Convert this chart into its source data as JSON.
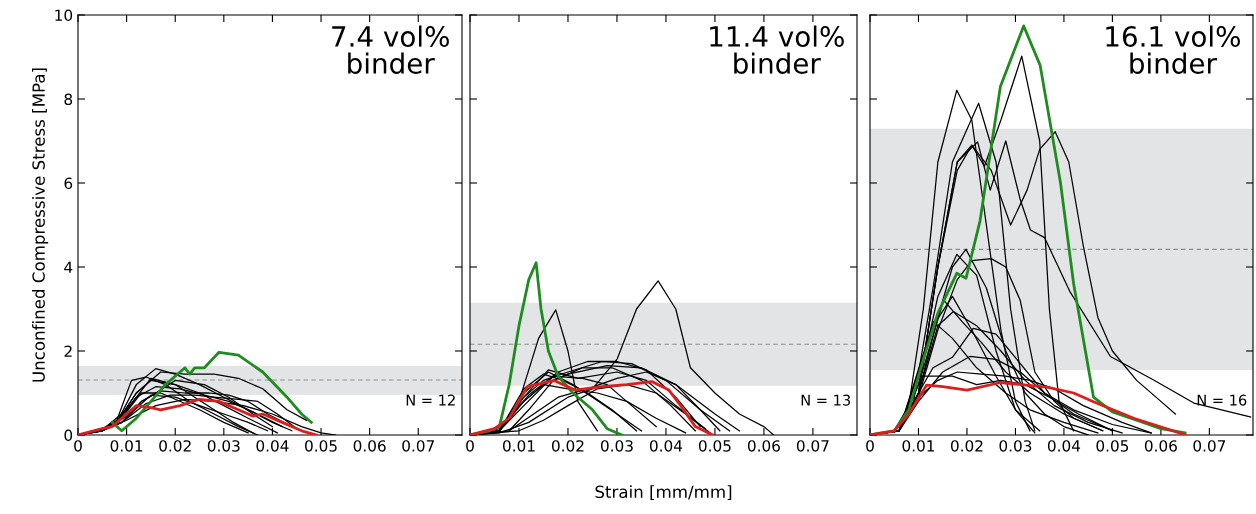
{
  "chart_data": [
    {
      "type": "line",
      "title": "7.4 vol%\nbinder",
      "ylabel": "Unconfined Compressive Stress [MPa]",
      "annotations": [
        "N = 12"
      ],
      "xlim": [
        0,
        0.079
      ],
      "xticks": [
        0,
        0.01,
        0.02,
        0.03,
        0.04,
        0.05,
        0.06,
        0.07
      ],
      "ylim": [
        0,
        10
      ],
      "yticks": [
        0,
        2,
        4,
        6,
        8,
        10
      ],
      "bands": [
        {
          "axis": "y",
          "from": 0.95,
          "to": 1.64,
          "color": "#e3e4e6"
        }
      ],
      "ref_lines": [
        {
          "axis": "y",
          "value": 1.31,
          "color": "#8c8c8c",
          "line_style": "dashed"
        }
      ],
      "series": [
        {
          "color": "#000000",
          "x": [
            0,
            0.005,
            0.008,
            0.012,
            0.016,
            0.02,
            0.025,
            0.03,
            0.035,
            0.04,
            0.044
          ],
          "values": [
            0,
            0.15,
            0.3,
            1.2,
            1.58,
            1.45,
            1.2,
            0.9,
            0.6,
            0.3,
            0.1
          ]
        },
        {
          "color": "#000000",
          "x": [
            0,
            0.005,
            0.008,
            0.012,
            0.017,
            0.022,
            0.028,
            0.033,
            0.038,
            0.043,
            0.047
          ],
          "values": [
            0,
            0.15,
            0.3,
            1.0,
            1.5,
            1.45,
            1.45,
            1.35,
            1.1,
            0.6,
            0.35
          ]
        },
        {
          "color": "#000000",
          "x": [
            0,
            0.005,
            0.008,
            0.011,
            0.014,
            0.018,
            0.023,
            0.028,
            0.033,
            0.037
          ],
          "values": [
            0,
            0.15,
            0.35,
            1.3,
            1.38,
            1.2,
            0.8,
            0.5,
            0.2,
            0
          ]
        },
        {
          "color": "#000000",
          "x": [
            0,
            0.005,
            0.008,
            0.012,
            0.015,
            0.02,
            0.025,
            0.03,
            0.035,
            0.041
          ],
          "values": [
            0,
            0.15,
            0.3,
            1.0,
            1.3,
            1.2,
            1.0,
            0.7,
            0.4,
            0.05
          ]
        },
        {
          "color": "#000000",
          "x": [
            0,
            0.005,
            0.008,
            0.012,
            0.016,
            0.021,
            0.026,
            0.031,
            0.036,
            0.042
          ],
          "values": [
            0,
            0.12,
            0.3,
            0.9,
            1.15,
            1.1,
            0.95,
            0.8,
            0.55,
            0.2
          ]
        },
        {
          "color": "#000000",
          "x": [
            0,
            0.005,
            0.009,
            0.013,
            0.017,
            0.022,
            0.027,
            0.031,
            0.035,
            0.039,
            0.044
          ],
          "values": [
            0,
            0.12,
            0.3,
            0.8,
            1.05,
            1.0,
            1.0,
            0.95,
            0.8,
            0.5,
            0.2
          ]
        },
        {
          "color": "#000000",
          "x": [
            0,
            0.005,
            0.009,
            0.013,
            0.017,
            0.02,
            0.025,
            0.03,
            0.035
          ],
          "values": [
            0,
            0.12,
            0.4,
            1.0,
            1.0,
            0.85,
            0.6,
            0.3,
            0.05
          ]
        },
        {
          "color": "#000000",
          "x": [
            0,
            0.005,
            0.009,
            0.014,
            0.019,
            0.024,
            0.028,
            0.033,
            0.037,
            0.041,
            0.045
          ],
          "values": [
            0,
            0.1,
            0.3,
            0.75,
            0.95,
            0.95,
            0.9,
            0.85,
            0.8,
            0.5,
            0.15
          ]
        },
        {
          "color": "#000000",
          "x": [
            0,
            0.005,
            0.009,
            0.014,
            0.02,
            0.026,
            0.031,
            0.036,
            0.04
          ],
          "values": [
            0,
            0.1,
            0.3,
            0.85,
            1.3,
            1.2,
            0.9,
            0.5,
            0.2
          ]
        },
        {
          "color": "#000000",
          "x": [
            0,
            0.005,
            0.01,
            0.015,
            0.02,
            0.025,
            0.03,
            0.035,
            0.039
          ],
          "values": [
            0,
            0.1,
            0.45,
            0.95,
            0.9,
            0.7,
            0.5,
            0.3,
            0.1
          ]
        },
        {
          "color": "#000000",
          "x": [
            0,
            0.005,
            0.01,
            0.016,
            0.022,
            0.028,
            0.034,
            0.04,
            0.046,
            0.05,
            0.053
          ],
          "values": [
            0,
            0.1,
            0.35,
            0.7,
            0.85,
            0.8,
            0.7,
            0.5,
            0.2,
            0.05,
            0
          ]
        },
        {
          "color": "#000000",
          "x": [
            0,
            0.005,
            0.01,
            0.015,
            0.02,
            0.024,
            0.028,
            0.032,
            0.036
          ],
          "values": [
            0,
            0.12,
            0.6,
            1.35,
            1.2,
            0.9,
            0.6,
            0.3,
            0.05
          ]
        },
        {
          "color": "#1e8c1e",
          "x": [
            0.007,
            0.009,
            0.012,
            0.015,
            0.018,
            0.021,
            0.022,
            0.023,
            0.024,
            0.026,
            0.029,
            0.033,
            0.038,
            0.043,
            0.046,
            0.048
          ],
          "values": [
            0.3,
            0.1,
            0.4,
            0.8,
            1.2,
            1.5,
            1.6,
            1.45,
            1.6,
            1.6,
            1.97,
            1.9,
            1.5,
            0.9,
            0.5,
            0.3
          ]
        },
        {
          "color": "#dc1e1e",
          "x": [
            0,
            0.005,
            0.007,
            0.01,
            0.012,
            0.015,
            0.017,
            0.021,
            0.025,
            0.029,
            0.033,
            0.036,
            0.038,
            0.042,
            0.046,
            0.049
          ],
          "values": [
            0,
            0.15,
            0.2,
            0.5,
            0.7,
            0.65,
            0.6,
            0.7,
            0.85,
            0.8,
            0.6,
            0.45,
            0.5,
            0.3,
            0.1,
            0
          ]
        }
      ]
    },
    {
      "type": "line",
      "title": "11.4 vol%\nbinder",
      "xlabel": "Strain [mm/mm]",
      "annotations": [
        "N = 13"
      ],
      "tick_labels": "x",
      "xlim": [
        0,
        0.079
      ],
      "xticks": [
        0,
        0.01,
        0.02,
        0.03,
        0.04,
        0.05,
        0.06,
        0.07
      ],
      "ylim": [
        0,
        10
      ],
      "yticks": [
        0,
        2,
        4,
        6,
        8,
        10
      ],
      "bands": [
        {
          "axis": "y",
          "from": 1.17,
          "to": 3.15,
          "color": "#e3e4e6"
        }
      ],
      "ref_lines": [
        {
          "axis": "y",
          "value": 2.16,
          "color": "#8c8c8c",
          "line_style": "dashed"
        }
      ],
      "series": [
        {
          "color": "#000000",
          "x": [
            0,
            0.006,
            0.01,
            0.014,
            0.0175,
            0.02,
            0.022,
            0.026
          ],
          "values": [
            0,
            0.1,
            0.8,
            2.3,
            2.98,
            2.0,
            0.8,
            0.1
          ]
        },
        {
          "color": "#000000",
          "x": [
            0,
            0.006,
            0.012,
            0.02,
            0.025,
            0.03,
            0.034,
            0.0384,
            0.042,
            0.045,
            0.05,
            0.055,
            0.06,
            0.062
          ],
          "values": [
            0,
            0.05,
            0.3,
            0.9,
            1.1,
            1.8,
            3.0,
            3.67,
            3.0,
            1.6,
            1.0,
            0.5,
            0.2,
            0
          ]
        },
        {
          "color": "#000000",
          "x": [
            0,
            0.006,
            0.01,
            0.015,
            0.02,
            0.027,
            0.033,
            0.04,
            0.047,
            0.053
          ],
          "values": [
            0,
            0.1,
            0.8,
            1.3,
            1.5,
            1.75,
            1.7,
            1.3,
            0.6,
            0.1
          ]
        },
        {
          "color": "#000000",
          "x": [
            0,
            0.006,
            0.01,
            0.015,
            0.02,
            0.028,
            0.035,
            0.042,
            0.05,
            0.055
          ],
          "values": [
            0,
            0.1,
            0.7,
            1.2,
            1.45,
            1.65,
            1.6,
            1.2,
            0.5,
            0.1
          ]
        },
        {
          "color": "#000000",
          "x": [
            0,
            0.006,
            0.011,
            0.016,
            0.022,
            0.03,
            0.036,
            0.042,
            0.048
          ],
          "values": [
            0,
            0.1,
            0.9,
            1.55,
            1.35,
            1.5,
            1.3,
            0.7,
            0.15
          ]
        },
        {
          "color": "#000000",
          "x": [
            0,
            0.006,
            0.011,
            0.016,
            0.021,
            0.025,
            0.03,
            0.035
          ],
          "values": [
            0,
            0.1,
            1.0,
            1.5,
            1.2,
            0.9,
            0.5,
            0.1
          ]
        },
        {
          "color": "#000000",
          "x": [
            0,
            0.006,
            0.011,
            0.015,
            0.02,
            0.026,
            0.032,
            0.038,
            0.044
          ],
          "values": [
            0,
            0.1,
            0.8,
            1.2,
            1.1,
            1.0,
            0.8,
            0.4,
            0.05
          ]
        },
        {
          "color": "#000000",
          "x": [
            0,
            0.006,
            0.011,
            0.017,
            0.023,
            0.028,
            0.033,
            0.038
          ],
          "values": [
            0,
            0.1,
            0.7,
            1.4,
            1.35,
            1.2,
            0.7,
            0.2
          ]
        },
        {
          "color": "#000000",
          "x": [
            0,
            0.008,
            0.013,
            0.018,
            0.024,
            0.03,
            0.036,
            0.042,
            0.047,
            0.051
          ],
          "values": [
            0,
            0.1,
            0.5,
            0.9,
            1.1,
            1.35,
            1.5,
            1.2,
            0.6,
            0.1
          ]
        },
        {
          "color": "#000000",
          "x": [
            0,
            0.01,
            0.015,
            0.02,
            0.026,
            0.032,
            0.038,
            0.044,
            0.049
          ],
          "values": [
            0,
            0.1,
            0.35,
            0.7,
            1.1,
            1.2,
            1.0,
            0.5,
            0.05
          ]
        },
        {
          "color": "#000000",
          "x": [
            0,
            0.006,
            0.012,
            0.018,
            0.024,
            0.03,
            0.036,
            0.042,
            0.047
          ],
          "values": [
            0,
            0.15,
            0.95,
            1.5,
            1.75,
            1.75,
            1.55,
            0.9,
            0.2
          ]
        },
        {
          "color": "#000000",
          "x": [
            0,
            0.006,
            0.011,
            0.015,
            0.019,
            0.024,
            0.029,
            0.034
          ],
          "values": [
            0,
            0.1,
            1.1,
            1.45,
            1.3,
            1.0,
            0.6,
            0.1
          ]
        },
        {
          "color": "#000000",
          "x": [
            0,
            0.008,
            0.012,
            0.017,
            0.023,
            0.029,
            0.035,
            0.041,
            0.046
          ],
          "values": [
            0,
            0.1,
            0.6,
            1.3,
            1.6,
            1.6,
            1.3,
            0.7,
            0.1
          ]
        },
        {
          "color": "#1e8c1e",
          "x": [
            0,
            0.004,
            0.006,
            0.008,
            0.01,
            0.012,
            0.0135,
            0.0145,
            0.016,
            0.018,
            0.021,
            0.025,
            0.028,
            0.031
          ],
          "values": [
            0,
            0.1,
            0.2,
            1.2,
            2.6,
            3.7,
            4.1,
            3.0,
            2.0,
            1.4,
            1.0,
            0.6,
            0.15,
            0
          ]
        },
        {
          "color": "#dc1e1e",
          "x": [
            0,
            0.005,
            0.008,
            0.0117,
            0.0172,
            0.0214,
            0.0269,
            0.032,
            0.0372,
            0.0406,
            0.043,
            0.046,
            0.0495
          ],
          "values": [
            0,
            0.15,
            0.4,
            1.15,
            1.3,
            1.07,
            1.15,
            1.2,
            1.27,
            1.07,
            0.7,
            0.2,
            0
          ]
        }
      ]
    },
    {
      "type": "line",
      "title": "16.1 vol%\nbinder",
      "annotations": [
        "N = 16"
      ],
      "tick_labels": "x",
      "xlim": [
        0,
        0.079
      ],
      "xticks": [
        0,
        0.01,
        0.02,
        0.03,
        0.04,
        0.05,
        0.06,
        0.07
      ],
      "ylim": [
        0,
        10
      ],
      "yticks": [
        0,
        2,
        4,
        6,
        8,
        10
      ],
      "bands": [
        {
          "axis": "y",
          "from": 1.55,
          "to": 7.29,
          "color": "#e3e4e6"
        }
      ],
      "ref_lines": [
        {
          "axis": "y",
          "value": 4.42,
          "color": "#8c8c8c",
          "line_style": "dashed"
        }
      ],
      "series": [
        {
          "color": "#000000",
          "x": [
            0,
            0.005,
            0.008,
            0.011,
            0.014,
            0.0179,
            0.021,
            0.024,
            0.027,
            0.03,
            0.033
          ],
          "values": [
            0,
            0.1,
            0.7,
            3.0,
            6.5,
            8.21,
            7.5,
            5.0,
            2.5,
            0.8,
            0.1
          ]
        },
        {
          "color": "#000000",
          "x": [
            0,
            0.005,
            0.009,
            0.013,
            0.017,
            0.0224,
            0.026,
            0.029,
            0.032,
            0.034
          ],
          "values": [
            0,
            0.1,
            0.8,
            3.5,
            6.5,
            7.9,
            6.5,
            3.0,
            0.8,
            0.1
          ]
        },
        {
          "color": "#000000",
          "x": [
            0,
            0.006,
            0.01,
            0.014,
            0.018,
            0.021,
            0.0236,
            0.027,
            0.0313,
            0.035,
            0.037,
            0.039,
            0.042
          ],
          "values": [
            0,
            0.1,
            1.0,
            4.0,
            6.3,
            6.9,
            6.4,
            7.5,
            9.02,
            7.0,
            3.0,
            0.8,
            0.1
          ]
        },
        {
          "color": "#000000",
          "x": [
            0,
            0.006,
            0.01,
            0.014,
            0.018,
            0.0222,
            0.0248,
            0.028,
            0.031,
            0.0331,
            0.036,
            0.0413,
            0.0496,
            0.0585,
            0.0668,
            0.0785
          ],
          "values": [
            0,
            0.1,
            1.0,
            4.0,
            6.5,
            6.98,
            5.83,
            7.0,
            5.6,
            4.88,
            4.7,
            3.4,
            1.87,
            1.31,
            0.76,
            0.43
          ]
        },
        {
          "color": "#000000",
          "x": [
            0,
            0.006,
            0.01,
            0.014,
            0.018,
            0.021,
            0.025,
            0.029,
            0.0324,
            0.035,
            0.0382,
            0.041,
            0.044,
            0.047,
            0.05,
            0.055,
            0.06,
            0.063
          ],
          "values": [
            0,
            0.1,
            1.0,
            4.0,
            6.5,
            6.9,
            6.3,
            5.0,
            5.83,
            6.8,
            7.22,
            6.5,
            4.5,
            2.8,
            2.0,
            1.3,
            0.8,
            0.5
          ]
        },
        {
          "color": "#000000",
          "x": [
            0,
            0.006,
            0.01,
            0.014,
            0.017,
            0.0198,
            0.024,
            0.028,
            0.032,
            0.036,
            0.04,
            0.045
          ],
          "values": [
            0,
            0.1,
            1.0,
            2.8,
            4.0,
            4.42,
            3.5,
            2.0,
            1.0,
            0.5,
            0.2,
            0
          ]
        },
        {
          "color": "#000000",
          "x": [
            0,
            0.006,
            0.01,
            0.014,
            0.0179,
            0.022,
            0.026,
            0.03,
            0.034
          ],
          "values": [
            0,
            0.1,
            1.2,
            3.3,
            4.3,
            3.8,
            2.0,
            0.6,
            0.05
          ]
        },
        {
          "color": "#000000",
          "x": [
            0,
            0.006,
            0.01,
            0.014,
            0.018,
            0.021,
            0.025,
            0.028,
            0.031,
            0.034,
            0.038,
            0.042,
            0.048
          ],
          "values": [
            0,
            0.1,
            0.9,
            2.5,
            3.7,
            4.15,
            4.2,
            4.0,
            3.2,
            1.5,
            0.8,
            0.4,
            0.1
          ]
        },
        {
          "color": "#000000",
          "x": [
            0,
            0.006,
            0.01,
            0.0152,
            0.019,
            0.023,
            0.028,
            0.033,
            0.04,
            0.048
          ],
          "values": [
            0,
            0.1,
            1.2,
            3.21,
            2.7,
            2.2,
            1.5,
            1.0,
            0.5,
            0.1
          ]
        },
        {
          "color": "#000000",
          "x": [
            0,
            0.006,
            0.01,
            0.014,
            0.0172,
            0.022,
            0.027,
            0.032,
            0.038,
            0.045,
            0.052
          ],
          "values": [
            0,
            0.1,
            1.0,
            2.6,
            2.94,
            2.6,
            2.0,
            1.3,
            0.7,
            0.3,
            0.05
          ]
        },
        {
          "color": "#000000",
          "x": [
            0,
            0.006,
            0.0131,
            0.017,
            0.022,
            0.028,
            0.033,
            0.04,
            0.047
          ],
          "values": [
            0,
            0.1,
            2.7,
            2.3,
            1.6,
            1.0,
            0.6,
            0.3,
            0.05
          ]
        },
        {
          "color": "#000000",
          "x": [
            0,
            0.006,
            0.01,
            0.013,
            0.017,
            0.0213,
            0.026,
            0.031,
            0.036,
            0.042,
            0.05
          ],
          "values": [
            0,
            0.1,
            1.0,
            1.6,
            1.85,
            2.54,
            2.4,
            1.7,
            1.0,
            0.5,
            0.1
          ]
        },
        {
          "color": "#000000",
          "x": [
            0,
            0.006,
            0.01,
            0.015,
            0.0206,
            0.026,
            0.031,
            0.036,
            0.042,
            0.05,
            0.058
          ],
          "values": [
            0,
            0.1,
            0.8,
            1.5,
            1.87,
            1.8,
            1.5,
            1.0,
            0.6,
            0.25,
            0.05
          ]
        },
        {
          "color": "#000000",
          "x": [
            0,
            0.006,
            0.0098,
            0.013,
            0.017,
            0.022,
            0.027,
            0.032,
            0.037,
            0.043,
            0.05
          ],
          "values": [
            0,
            0.1,
            1.4,
            1.4,
            1.4,
            1.2,
            1.3,
            1.2,
            0.9,
            0.5,
            0.1
          ]
        },
        {
          "color": "#000000",
          "x": [
            0,
            0.006,
            0.01,
            0.014,
            0.018,
            0.023,
            0.028,
            0.033,
            0.038,
            0.044,
            0.052,
            0.058
          ],
          "values": [
            0,
            0.1,
            0.9,
            1.3,
            1.5,
            1.45,
            1.4,
            1.3,
            1.1,
            0.7,
            0.3,
            0.05
          ]
        },
        {
          "color": "#000000",
          "x": [
            0,
            0.006,
            0.01,
            0.013,
            0.017,
            0.021,
            0.026,
            0.03,
            0.035
          ],
          "values": [
            0,
            0.1,
            1.5,
            2.6,
            3.3,
            2.5,
            1.4,
            0.6,
            0.1
          ]
        },
        {
          "color": "#1e8c1e",
          "x": [
            0,
            0.005,
            0.008,
            0.011,
            0.014,
            0.0179,
            0.0198,
            0.0227,
            0.0269,
            0.0317,
            0.0351,
            0.0393,
            0.042,
            0.0461,
            0.05,
            0.055,
            0.06,
            0.065
          ],
          "values": [
            0,
            0.1,
            0.6,
            1.8,
            2.9,
            3.85,
            3.73,
            5.1,
            8.3,
            9.74,
            8.8,
            6.0,
            3.6,
            0.9,
            0.55,
            0.35,
            0.15,
            0.05
          ]
        },
        {
          "color": "#dc1e1e",
          "x": [
            0,
            0.005,
            0.008,
            0.0117,
            0.015,
            0.02,
            0.0269,
            0.0365,
            0.042,
            0.0461,
            0.0544,
            0.062,
            0.065
          ],
          "values": [
            0,
            0.1,
            0.5,
            1.19,
            1.15,
            1.07,
            1.25,
            1.14,
            1.0,
            0.79,
            0.4,
            0.12,
            0
          ]
        }
      ]
    }
  ]
}
